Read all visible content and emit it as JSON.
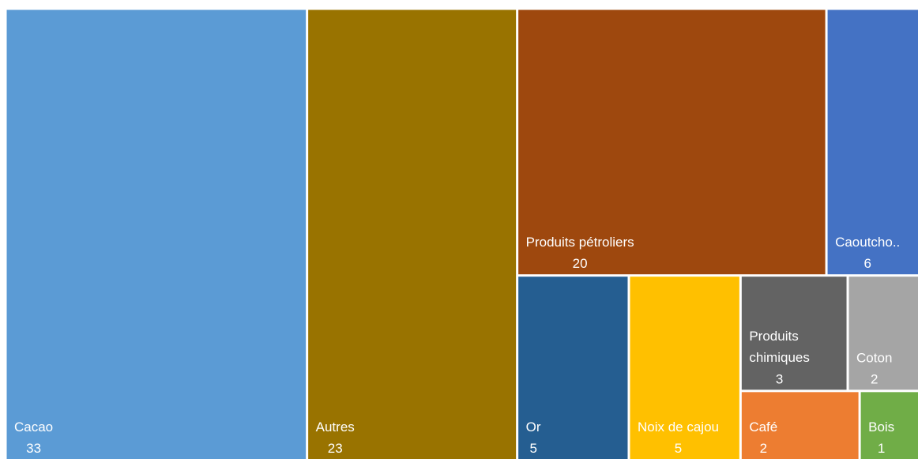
{
  "chart_data": {
    "type": "treemap",
    "categories": [
      "Cacao",
      "Autres",
      "Produits pétroliers",
      "Caoutcho..",
      "Or",
      "Noix de cajou",
      "Produits chimiques",
      "Coton",
      "Café",
      "Bois"
    ],
    "values": [
      33,
      23,
      20,
      6,
      5,
      5,
      3,
      2,
      2,
      1
    ],
    "colors": [
      "#5b9bd5",
      "#997300",
      "#9e480e",
      "#4472c4",
      "#255e91",
      "#ffc000",
      "#636363",
      "#a5a5a5",
      "#ed7d31",
      "#70ad47"
    ]
  }
}
